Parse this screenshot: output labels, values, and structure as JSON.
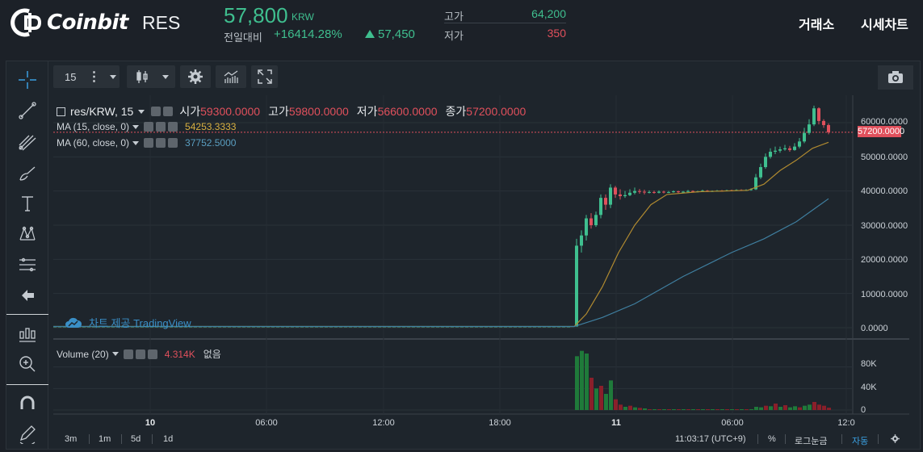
{
  "header": {
    "brand": "Coinbit",
    "symbol": "RES",
    "price": "57,800",
    "price_unit": "KRW",
    "change_label": "전일대비",
    "change_pct": "+16414.28%",
    "change_abs": "57,450",
    "high_label": "고가",
    "high_value": "64,200",
    "low_label": "저가",
    "low_value": "350",
    "nav": [
      "거래소",
      "시세차트"
    ],
    "colors": {
      "up": "#3fbf8f",
      "down": "#e0505c",
      "accent": "#3a9fe0"
    }
  },
  "toolbar": {
    "interval": "15",
    "icons": [
      "chart-type-candles-icon",
      "settings-gear-icon",
      "indicators-icon",
      "fullscreen-icon",
      "camera-icon"
    ]
  },
  "left_tools": [
    "crosshair-icon",
    "trend-line-icon",
    "pitchfork-icon",
    "brush-icon",
    "text-icon",
    "pattern-icon",
    "fib-icon",
    "back-arrow-icon",
    "chart-template-icon",
    "zoom-in-icon",
    "magnet-icon",
    "pencil-icon"
  ],
  "legend": {
    "symbol_label": "res/KRW, 15",
    "ohlc": [
      {
        "k": "시가",
        "v": "59300.0000"
      },
      {
        "k": "고가",
        "v": "59800.0000"
      },
      {
        "k": "저가",
        "v": "56600.0000"
      },
      {
        "k": "종가",
        "v": "57200.0000"
      }
    ],
    "ma15_label": "MA (15, close, 0)",
    "ma15_value": "54253.3333",
    "ma60_label": "MA (60, close, 0)",
    "ma60_value": "37752.5000",
    "volume_label": "Volume (20)",
    "volume_value": "4.314K",
    "volume_note": "없음",
    "watermark": "차트 제공 TradingView",
    "last_price_tag": "57200.0000"
  },
  "chart_data": {
    "type": "candlestick",
    "y_ticks": [
      "60000.0000",
      "50000.0000",
      "40000.0000",
      "30000.0000",
      "20000.0000",
      "10000.0000",
      "0.0000"
    ],
    "ylim": [
      0,
      65000
    ],
    "volume_ticks": [
      "80K",
      "40K",
      "0"
    ],
    "volume_ylim": [
      0,
      120000
    ],
    "x_ticks": [
      "10",
      "06:00",
      "12:00",
      "18:00",
      "11",
      "06:00",
      "12:0"
    ],
    "x_ticks_bold": [
      true,
      false,
      false,
      false,
      true,
      false,
      false
    ],
    "last_price": 57200
  },
  "bottom": {
    "ranges": [
      "3m",
      "1m",
      "5d",
      "1d"
    ],
    "clock": "11:03:17 (UTC+9)",
    "pct_label": "%",
    "log_label": "로그눈금",
    "auto_label": "자동"
  }
}
